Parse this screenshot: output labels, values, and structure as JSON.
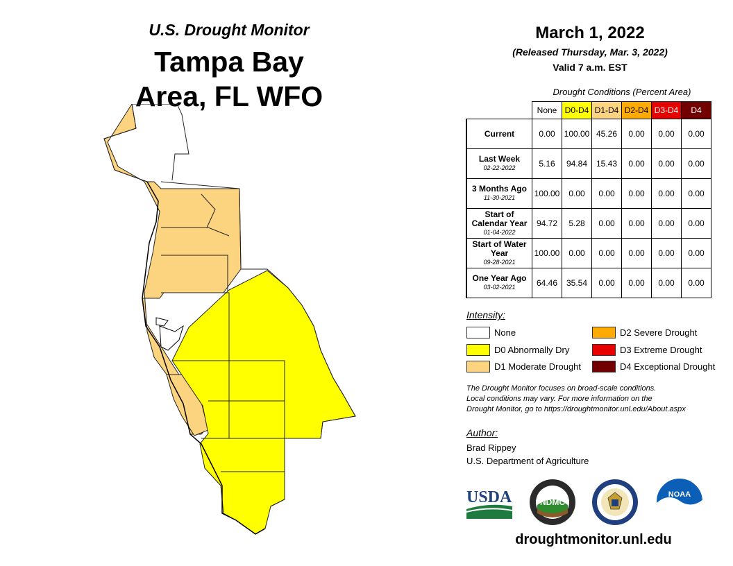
{
  "header": {
    "monitor": "U.S. Drought Monitor",
    "region_line1": "Tampa Bay",
    "region_line2": "Area, FL WFO"
  },
  "release": {
    "date": "March 1, 2022",
    "released": "(Released Thursday, Mar. 3, 2022)",
    "valid": "Valid 7 a.m. EST"
  },
  "conditions": {
    "title": "Drought Conditions (Percent Area)",
    "columns": [
      "None",
      "D0-D4",
      "D1-D4",
      "D2-D4",
      "D3-D4",
      "D4"
    ],
    "column_colors": [
      "#ffffff",
      "#ffff00",
      "#fcd37f",
      "#ffaa00",
      "#e60000",
      "#730000"
    ],
    "column_text_colors": [
      "#000000",
      "#000000",
      "#000000",
      "#000000",
      "#ffffff",
      "#ffffff"
    ],
    "rows": [
      {
        "label": "Current",
        "date": "",
        "values": [
          "0.00",
          "100.00",
          "45.26",
          "0.00",
          "0.00",
          "0.00"
        ]
      },
      {
        "label": "Last Week",
        "date": "02-22-2022",
        "values": [
          "5.16",
          "94.84",
          "15.43",
          "0.00",
          "0.00",
          "0.00"
        ]
      },
      {
        "label": "3 Months Ago",
        "date": "11-30-2021",
        "values": [
          "100.00",
          "0.00",
          "0.00",
          "0.00",
          "0.00",
          "0.00"
        ]
      },
      {
        "label": "Start of Calendar Year",
        "date": "01-04-2022",
        "values": [
          "94.72",
          "5.28",
          "0.00",
          "0.00",
          "0.00",
          "0.00"
        ]
      },
      {
        "label": "Start of Water Year",
        "date": "09-28-2021",
        "values": [
          "100.00",
          "0.00",
          "0.00",
          "0.00",
          "0.00",
          "0.00"
        ]
      },
      {
        "label": "One Year Ago",
        "date": "03-02-2021",
        "values": [
          "64.46",
          "35.54",
          "0.00",
          "0.00",
          "0.00",
          "0.00"
        ]
      }
    ]
  },
  "intensity": {
    "title": "Intensity:",
    "items": [
      {
        "label": "None",
        "color": "#ffffff"
      },
      {
        "label": "D0 Abnormally Dry",
        "color": "#ffff00"
      },
      {
        "label": "D1 Moderate Drought",
        "color": "#fcd37f"
      },
      {
        "label": "D2 Severe Drought",
        "color": "#ffaa00"
      },
      {
        "label": "D3 Extreme Drought",
        "color": "#e60000"
      },
      {
        "label": "D4 Exceptional Drought",
        "color": "#730000"
      }
    ]
  },
  "note": {
    "line1": "The Drought Monitor focuses on broad-scale conditions.",
    "line2": "Local conditions may vary. For more information on the",
    "line3": "Drought Monitor, go to https://droughtmonitor.unl.edu/About.aspx"
  },
  "author": {
    "title": "Author:",
    "name": "Brad Rippey",
    "org": "U.S. Department of Agriculture"
  },
  "logos": {
    "usda": "USDA",
    "ndmc": "NDMC",
    "noaa": "NOAA"
  },
  "website": "droughtmonitor.unl.edu",
  "map_colors": {
    "d0": "#ffff00",
    "d1": "#fcd37f",
    "border": "#222222"
  }
}
